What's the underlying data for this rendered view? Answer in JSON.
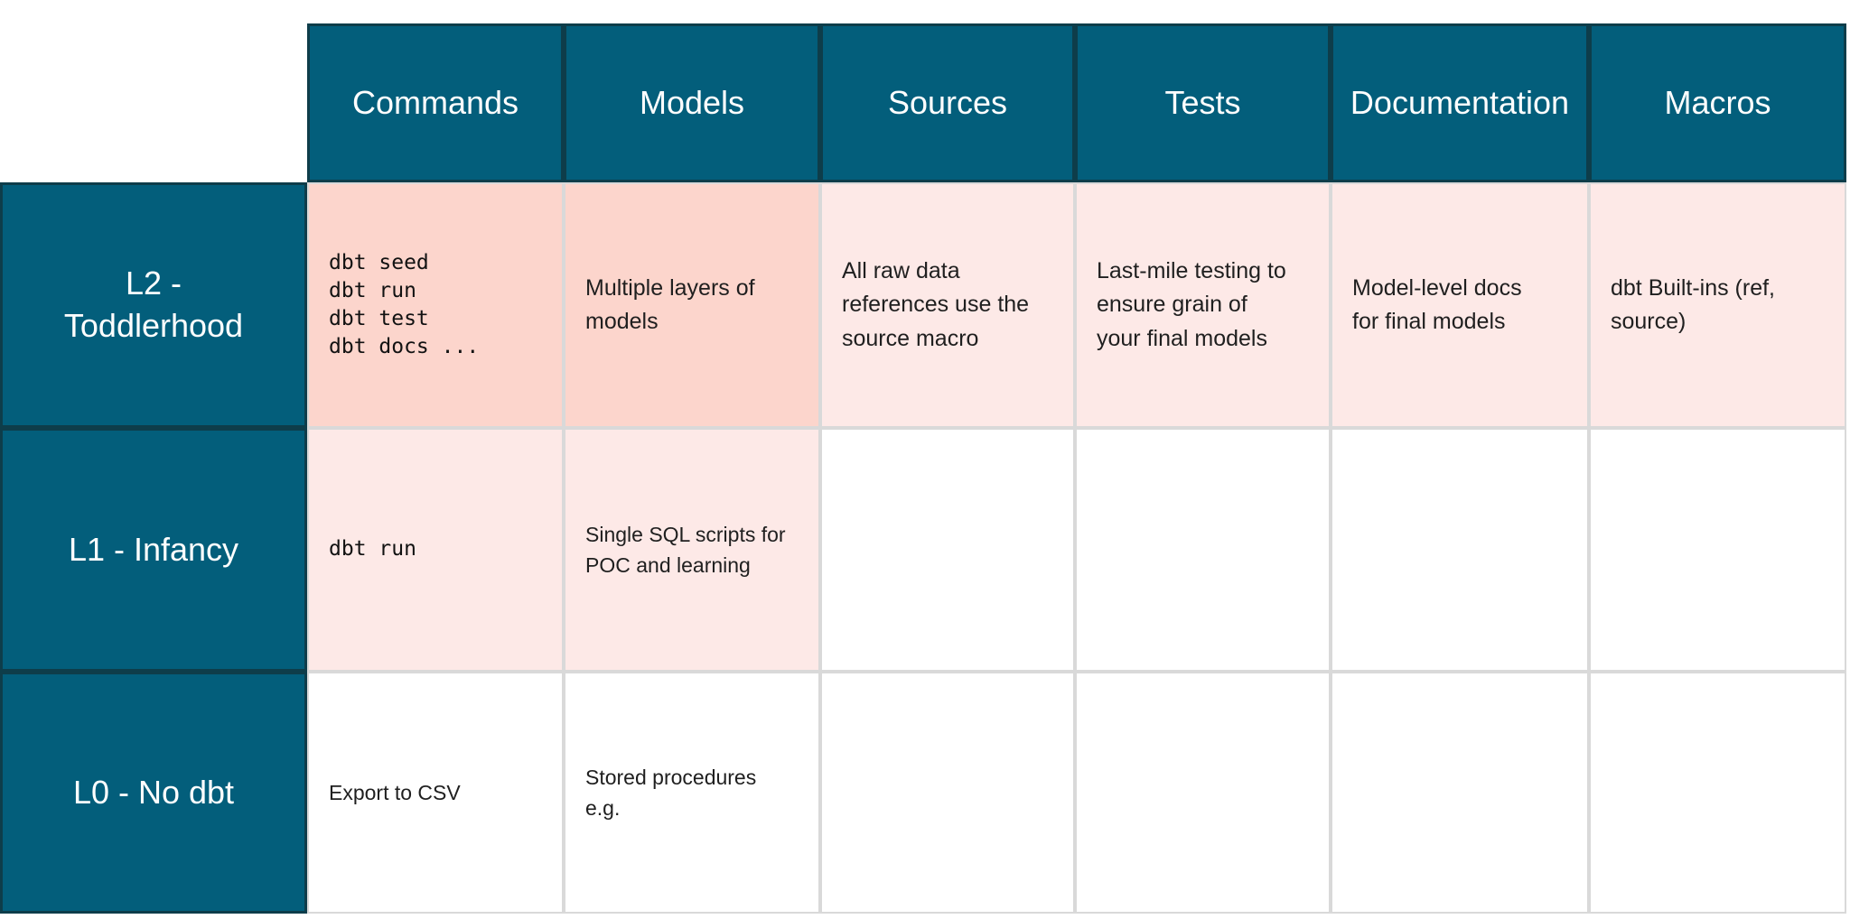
{
  "colors": {
    "header_teal": "#035e7b",
    "header_border": "#0e3d4a",
    "highlight_strong": "#fcd5cc",
    "highlight_light": "#fde9e7",
    "grid_line": "#d9d9d9",
    "header_text": "#ffffff",
    "body_text": "#1f1f1f"
  },
  "chart_data": {
    "type": "table",
    "title": "",
    "column_headers": [
      "Commands",
      "Models",
      "Sources",
      "Tests",
      "Documentation",
      "Macros"
    ],
    "row_headers": [
      "L2 -\nToddlerhood",
      "L1 - Infancy",
      "L0 - No dbt"
    ],
    "cells": [
      [
        {
          "text": "dbt seed\ndbt run\ndbt test\ndbt docs ...",
          "bg": "highlight_strong",
          "mono": true
        },
        {
          "text": "Multiple layers of\nmodels",
          "bg": "highlight_strong",
          "mono": false
        },
        {
          "text": "All raw data\nreferences use the\nsource macro",
          "bg": "highlight_light",
          "mono": false
        },
        {
          "text": "Last-mile testing to\nensure grain of\nyour final models",
          "bg": "highlight_light",
          "mono": false
        },
        {
          "text": "Model-level docs\nfor final models",
          "bg": "highlight_light",
          "mono": false
        },
        {
          "text": "dbt Built-ins (ref,\nsource)",
          "bg": "highlight_light",
          "mono": false
        }
      ],
      [
        {
          "text": "dbt run",
          "bg": "highlight_light",
          "mono": true
        },
        {
          "text": "Single SQL scripts for\nPOC and learning",
          "bg": "highlight_light",
          "mono": false
        },
        {
          "text": "",
          "bg": "white",
          "mono": false
        },
        {
          "text": "",
          "bg": "white",
          "mono": false
        },
        {
          "text": "",
          "bg": "white",
          "mono": false
        },
        {
          "text": "",
          "bg": "white",
          "mono": false
        }
      ],
      [
        {
          "text": "Export to CSV",
          "bg": "white",
          "mono": false
        },
        {
          "text": "Stored procedures\ne.g.",
          "bg": "white",
          "mono": false
        },
        {
          "text": "",
          "bg": "white",
          "mono": false
        },
        {
          "text": "",
          "bg": "white",
          "mono": false
        },
        {
          "text": "",
          "bg": "white",
          "mono": false
        },
        {
          "text": "",
          "bg": "white",
          "mono": false
        }
      ]
    ]
  }
}
